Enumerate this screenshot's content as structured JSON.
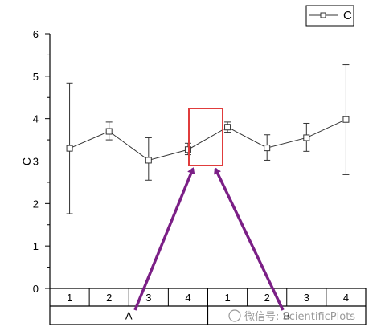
{
  "chart_data": {
    "type": "line",
    "ylabel": "C",
    "ylim": [
      0,
      6
    ],
    "y_ticks": [
      "0",
      "1",
      "2",
      "3",
      "4",
      "5",
      "6"
    ],
    "level1_categories": [
      "1",
      "2",
      "3",
      "4",
      "1",
      "2",
      "3",
      "4"
    ],
    "level2_groups": [
      {
        "label": "A",
        "span": [
          0,
          3
        ]
      },
      {
        "label": "B",
        "span": [
          4,
          7
        ]
      }
    ],
    "series": [
      {
        "name": "C",
        "values": [
          3.3,
          3.7,
          3.02,
          3.27,
          3.8,
          3.31,
          3.55,
          3.98
        ],
        "err_low": [
          1.76,
          3.5,
          2.55,
          3.15,
          3.68,
          3.02,
          3.23,
          2.68
        ],
        "err_high": [
          4.84,
          3.92,
          3.55,
          3.42,
          3.92,
          3.62,
          3.89,
          5.27
        ]
      }
    ],
    "legend": {
      "placement": "top-right",
      "marker": "open-square"
    },
    "grid": false,
    "annotation": {
      "type": "highlight-box",
      "color": "#e03c3c",
      "y_range": [
        2.95,
        4.25
      ],
      "between_points": [
        3,
        4
      ]
    },
    "arrows": {
      "color": "#7b1f86",
      "from": [
        "group-label-A",
        "group-label-B"
      ],
      "to": "highlight-box"
    }
  },
  "watermark": {
    "text": "微信号: ScientificPlots"
  }
}
